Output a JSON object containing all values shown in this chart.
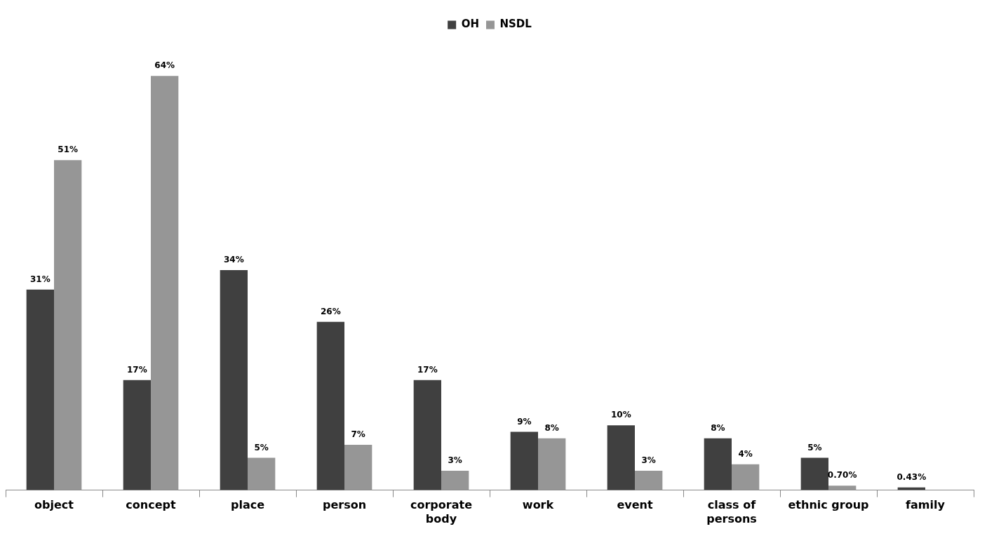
{
  "chart_data": {
    "type": "bar",
    "categories": [
      "object",
      "concept",
      "place",
      "person",
      "corporate body",
      "work",
      "event",
      "class of persons",
      "ethnic group",
      "family"
    ],
    "series": [
      {
        "name": "OH",
        "color": "#404040",
        "values": [
          31,
          17,
          34,
          26,
          17,
          9,
          10,
          8,
          5,
          0.43
        ],
        "value_labels": [
          "31%",
          "17%",
          "34%",
          "26%",
          "17%",
          "9%",
          "10%",
          "8%",
          "5%",
          "0.43%"
        ]
      },
      {
        "name": "NSDL",
        "color": "#969696",
        "values": [
          51,
          64,
          5,
          7,
          3,
          8,
          3,
          4,
          0.7,
          null
        ],
        "value_labels": [
          "51%",
          "64%",
          "5%",
          "7%",
          "3%",
          "8%",
          "3%",
          "4%",
          "0.70%",
          null
        ]
      }
    ],
    "legend": "top",
    "grid": false
  }
}
